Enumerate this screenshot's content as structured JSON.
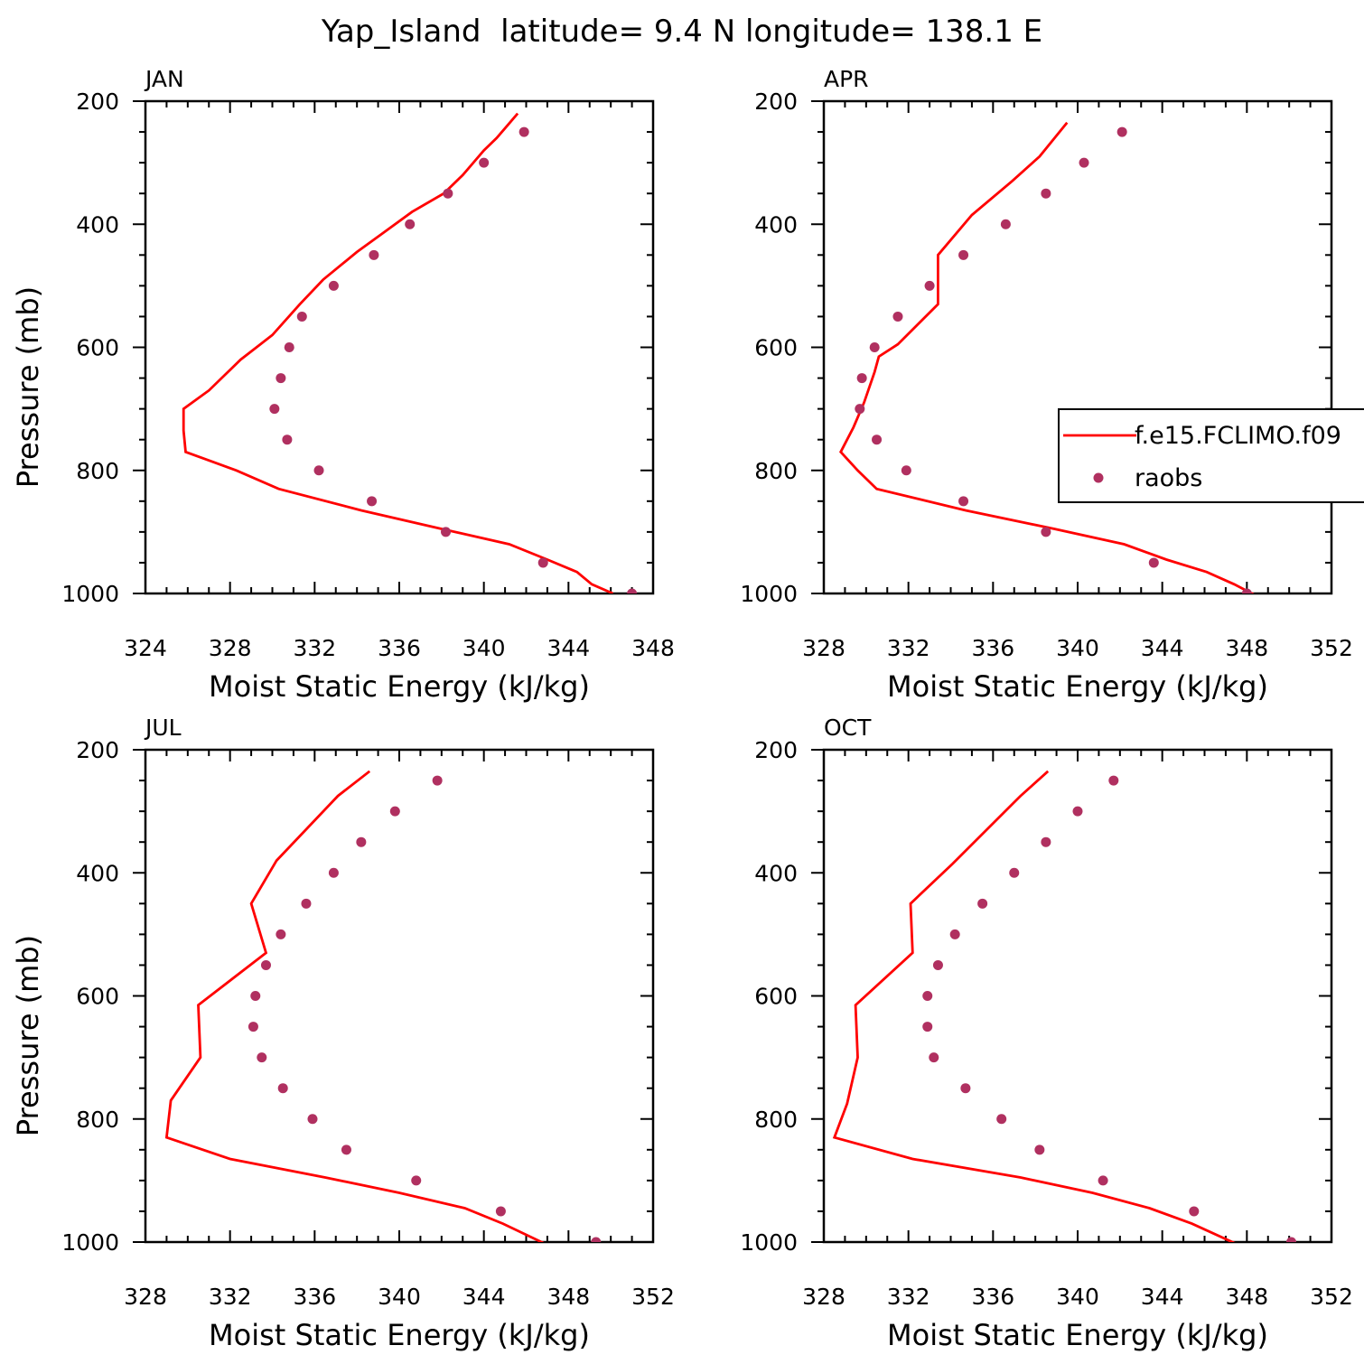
{
  "title": "Yap_Island  latitude= 9.4 N longitude= 138.1 E",
  "colors": {
    "model": "#ff0000",
    "obs": "#b03060",
    "axis": "#000000"
  },
  "legend": {
    "entries": [
      {
        "label": "f.e15.FCLIMO.f09",
        "kind": "line"
      },
      {
        "label": "raobs",
        "kind": "marker"
      }
    ]
  },
  "chart_data": [
    {
      "type": "line",
      "panel": "JAN",
      "xlabel": "Moist Static Energy (kJ/kg)",
      "ylabel": "Pressure (mb)",
      "xlim": [
        324,
        348
      ],
      "ylim": [
        1000,
        200
      ],
      "xticks": [
        324,
        328,
        332,
        336,
        340,
        344,
        348
      ],
      "yticks": [
        200,
        400,
        600,
        800,
        1000
      ],
      "series": [
        {
          "kind": "line",
          "points": [
            [
              346.1,
              1000
            ],
            [
              345.1,
              985
            ],
            [
              344.4,
              965
            ],
            [
              343.0,
              945
            ],
            [
              341.2,
              920
            ],
            [
              338.0,
              895
            ],
            [
              334.2,
              865
            ],
            [
              330.3,
              830
            ],
            [
              328.3,
              800
            ],
            [
              325.9,
              770
            ],
            [
              325.8,
              735
            ],
            [
              325.8,
              700
            ],
            [
              327.0,
              670
            ],
            [
              328.5,
              620
            ],
            [
              330.0,
              580
            ],
            [
              331.3,
              530
            ],
            [
              332.4,
              490
            ],
            [
              334.0,
              445
            ],
            [
              335.2,
              415
            ],
            [
              336.6,
              380
            ],
            [
              338.1,
              350
            ],
            [
              339.0,
              320
            ],
            [
              339.5,
              300
            ],
            [
              340.0,
              280
            ],
            [
              340.6,
              260
            ],
            [
              341.1,
              240
            ],
            [
              341.6,
              220
            ]
          ]
        },
        {
          "kind": "scatter",
          "points": [
            [
              347.0,
              1000
            ],
            [
              342.8,
              950
            ],
            [
              338.2,
              900
            ],
            [
              334.7,
              850
            ],
            [
              332.2,
              800
            ],
            [
              330.7,
              750
            ],
            [
              330.1,
              700
            ],
            [
              330.4,
              650
            ],
            [
              330.8,
              600
            ],
            [
              331.4,
              550
            ],
            [
              332.9,
              500
            ],
            [
              334.8,
              450
            ],
            [
              336.5,
              400
            ],
            [
              338.3,
              350
            ],
            [
              340.0,
              300
            ],
            [
              341.9,
              250
            ]
          ]
        }
      ]
    },
    {
      "type": "line",
      "panel": "APR",
      "xlabel": "Moist Static Energy (kJ/kg)",
      "ylabel": "",
      "xlim": [
        328,
        352
      ],
      "ylim": [
        1000,
        200
      ],
      "xticks": [
        328,
        332,
        336,
        340,
        344,
        348,
        352
      ],
      "yticks": [
        200,
        400,
        600,
        800,
        1000
      ],
      "series": [
        {
          "kind": "line",
          "points": [
            [
              348.4,
              1003
            ],
            [
              347.4,
              985
            ],
            [
              346.1,
              965
            ],
            [
              344.2,
              945
            ],
            [
              342.2,
              920
            ],
            [
              338.9,
              895
            ],
            [
              334.7,
              865
            ],
            [
              330.5,
              830
            ],
            [
              329.6,
              800
            ],
            [
              328.8,
              770
            ],
            [
              329.4,
              730
            ],
            [
              329.9,
              690
            ],
            [
              330.4,
              640
            ],
            [
              330.6,
              615
            ],
            [
              331.5,
              595
            ],
            [
              333.4,
              530
            ],
            [
              333.4,
              450
            ],
            [
              335.0,
              385
            ],
            [
              336.9,
              330
            ],
            [
              338.2,
              290
            ],
            [
              339.5,
              235
            ]
          ]
        },
        {
          "kind": "scatter",
          "points": [
            [
              348.0,
              1000
            ],
            [
              343.6,
              950
            ],
            [
              338.5,
              900
            ],
            [
              334.6,
              850
            ],
            [
              331.9,
              800
            ],
            [
              330.5,
              750
            ],
            [
              329.7,
              700
            ],
            [
              329.8,
              650
            ],
            [
              330.4,
              600
            ],
            [
              331.5,
              550
            ],
            [
              333.0,
              500
            ],
            [
              334.6,
              450
            ],
            [
              336.6,
              400
            ],
            [
              338.5,
              350
            ],
            [
              340.3,
              300
            ],
            [
              342.1,
              250
            ]
          ]
        }
      ]
    },
    {
      "type": "line",
      "panel": "JUL",
      "xlabel": "Moist Static Energy (kJ/kg)",
      "ylabel": "Pressure (mb)",
      "xlim": [
        328,
        352
      ],
      "ylim": [
        1000,
        200
      ],
      "xticks": [
        328,
        332,
        336,
        340,
        344,
        348,
        352
      ],
      "yticks": [
        200,
        400,
        600,
        800,
        1000
      ],
      "series": [
        {
          "kind": "line",
          "points": [
            [
              346.9,
              1003
            ],
            [
              344.9,
              970
            ],
            [
              343.1,
              945
            ],
            [
              340.0,
              920
            ],
            [
              336.5,
              895
            ],
            [
              332.0,
              865
            ],
            [
              329.0,
              830
            ],
            [
              329.2,
              770
            ],
            [
              330.6,
              700
            ],
            [
              330.5,
              615
            ],
            [
              333.7,
              530
            ],
            [
              333.0,
              450
            ],
            [
              334.2,
              380
            ],
            [
              337.1,
              275
            ],
            [
              338.6,
              235
            ]
          ]
        },
        {
          "kind": "scatter",
          "points": [
            [
              349.3,
              1000
            ],
            [
              344.8,
              950
            ],
            [
              340.8,
              900
            ],
            [
              337.5,
              850
            ],
            [
              335.9,
              800
            ],
            [
              334.5,
              750
            ],
            [
              333.5,
              700
            ],
            [
              333.1,
              650
            ],
            [
              333.2,
              600
            ],
            [
              333.7,
              550
            ],
            [
              334.4,
              500
            ],
            [
              335.6,
              450
            ],
            [
              336.9,
              400
            ],
            [
              338.2,
              350
            ],
            [
              339.8,
              300
            ],
            [
              341.8,
              250
            ]
          ]
        }
      ]
    },
    {
      "type": "line",
      "panel": "OCT",
      "xlabel": "Moist Static Energy (kJ/kg)",
      "ylabel": "",
      "xlim": [
        328,
        352
      ],
      "ylim": [
        1000,
        200
      ],
      "xticks": [
        328,
        332,
        336,
        340,
        344,
        348,
        352
      ],
      "yticks": [
        200,
        400,
        600,
        800,
        1000
      ],
      "series": [
        {
          "kind": "line",
          "points": [
            [
              347.5,
              1003
            ],
            [
              345.4,
              970
            ],
            [
              343.4,
              945
            ],
            [
              340.7,
              920
            ],
            [
              337.3,
              895
            ],
            [
              332.2,
              865
            ],
            [
              328.5,
              830
            ],
            [
              329.1,
              775
            ],
            [
              329.6,
              700
            ],
            [
              329.5,
              615
            ],
            [
              332.2,
              530
            ],
            [
              332.1,
              450
            ],
            [
              334.1,
              385
            ],
            [
              337.3,
              275
            ],
            [
              338.6,
              235
            ]
          ]
        },
        {
          "kind": "scatter",
          "points": [
            [
              350.1,
              1000
            ],
            [
              345.5,
              950
            ],
            [
              341.2,
              900
            ],
            [
              338.2,
              850
            ],
            [
              336.4,
              800
            ],
            [
              334.7,
              750
            ],
            [
              333.2,
              700
            ],
            [
              332.9,
              650
            ],
            [
              332.9,
              600
            ],
            [
              333.4,
              550
            ],
            [
              334.2,
              500
            ],
            [
              335.5,
              450
            ],
            [
              337.0,
              400
            ],
            [
              338.5,
              350
            ],
            [
              340.0,
              300
            ],
            [
              341.7,
              250
            ]
          ]
        }
      ]
    }
  ]
}
